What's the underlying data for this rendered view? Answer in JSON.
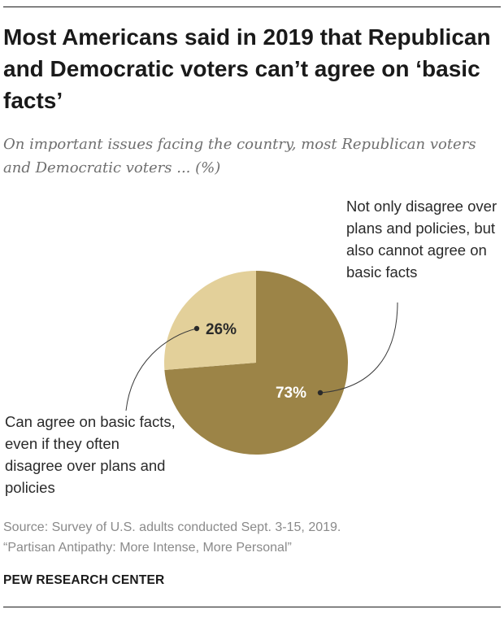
{
  "chart_data": {
    "type": "pie",
    "title": "Most Americans said in 2019 that Republican and Democratic voters can’t agree on ‘basic facts’",
    "subtitle": "On important issues facing the country, most Republican voters and Democratic voters ... (%)",
    "slices": [
      {
        "name": "Not only disagree over plans and policies, but also cannot agree on basic facts",
        "value": 73,
        "value_label": "73%",
        "color": "#9c8447",
        "label_color": "#ffffff"
      },
      {
        "name": "Can agree on basic facts, even if they often disagree over plans and policies",
        "value": 26,
        "value_label": "26%",
        "color": "#e3d09a",
        "label_color": "#2a2a2a"
      }
    ]
  },
  "footer": {
    "source_line1": "Source: Survey of U.S. adults conducted Sept. 3-15, 2019.",
    "source_line2": "“Partisan Antipathy: More Intense, More Personal”",
    "brand": "PEW RESEARCH CENTER"
  }
}
